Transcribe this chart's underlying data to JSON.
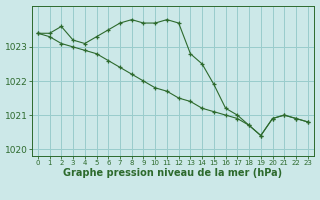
{
  "xlabel": "Graphe pression niveau de la mer (hPa)",
  "bg_color": "#cce8e8",
  "grid_color": "#99cccc",
  "line_color": "#2d6a2d",
  "xlim": [
    -0.5,
    23.5
  ],
  "ylim": [
    1019.8,
    1024.2
  ],
  "yticks": [
    1020,
    1021,
    1022,
    1023
  ],
  "xticks": [
    0,
    1,
    2,
    3,
    4,
    5,
    6,
    7,
    8,
    9,
    10,
    11,
    12,
    13,
    14,
    15,
    16,
    17,
    18,
    19,
    20,
    21,
    22,
    23
  ],
  "series1_x": [
    0,
    1,
    2,
    3,
    4,
    5,
    6,
    7,
    8,
    9,
    10,
    11,
    12,
    13,
    14,
    15,
    16,
    17,
    18,
    19,
    20,
    21,
    22,
    23
  ],
  "series1_y": [
    1023.4,
    1023.4,
    1023.6,
    1023.2,
    1023.1,
    1023.3,
    1023.5,
    1023.7,
    1023.8,
    1023.7,
    1023.7,
    1023.8,
    1023.7,
    1022.8,
    1022.5,
    1021.9,
    1021.2,
    1021.0,
    1020.7,
    1020.4,
    1020.9,
    1021.0,
    1020.9,
    1020.8
  ],
  "series2_x": [
    0,
    1,
    2,
    3,
    4,
    5,
    6,
    7,
    8,
    9,
    10,
    11,
    12,
    13,
    14,
    15,
    16,
    17,
    18,
    19,
    20,
    21,
    22,
    23
  ],
  "series2_y": [
    1023.4,
    1023.3,
    1023.1,
    1023.0,
    1022.9,
    1022.8,
    1022.6,
    1022.4,
    1022.2,
    1022.0,
    1021.8,
    1021.7,
    1021.5,
    1021.4,
    1021.2,
    1021.1,
    1021.0,
    1020.9,
    1020.7,
    1020.4,
    1020.9,
    1021.0,
    1020.9,
    1020.8
  ],
  "tick_fontsize": 6,
  "xlabel_fontsize": 7
}
